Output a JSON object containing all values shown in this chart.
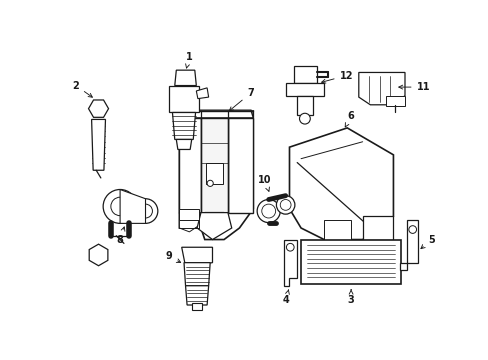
{
  "background_color": "#ffffff",
  "line_color": "#1a1a1a",
  "figsize": [
    4.89,
    3.6
  ],
  "dpi": 100,
  "label_fontsize": 7.0
}
